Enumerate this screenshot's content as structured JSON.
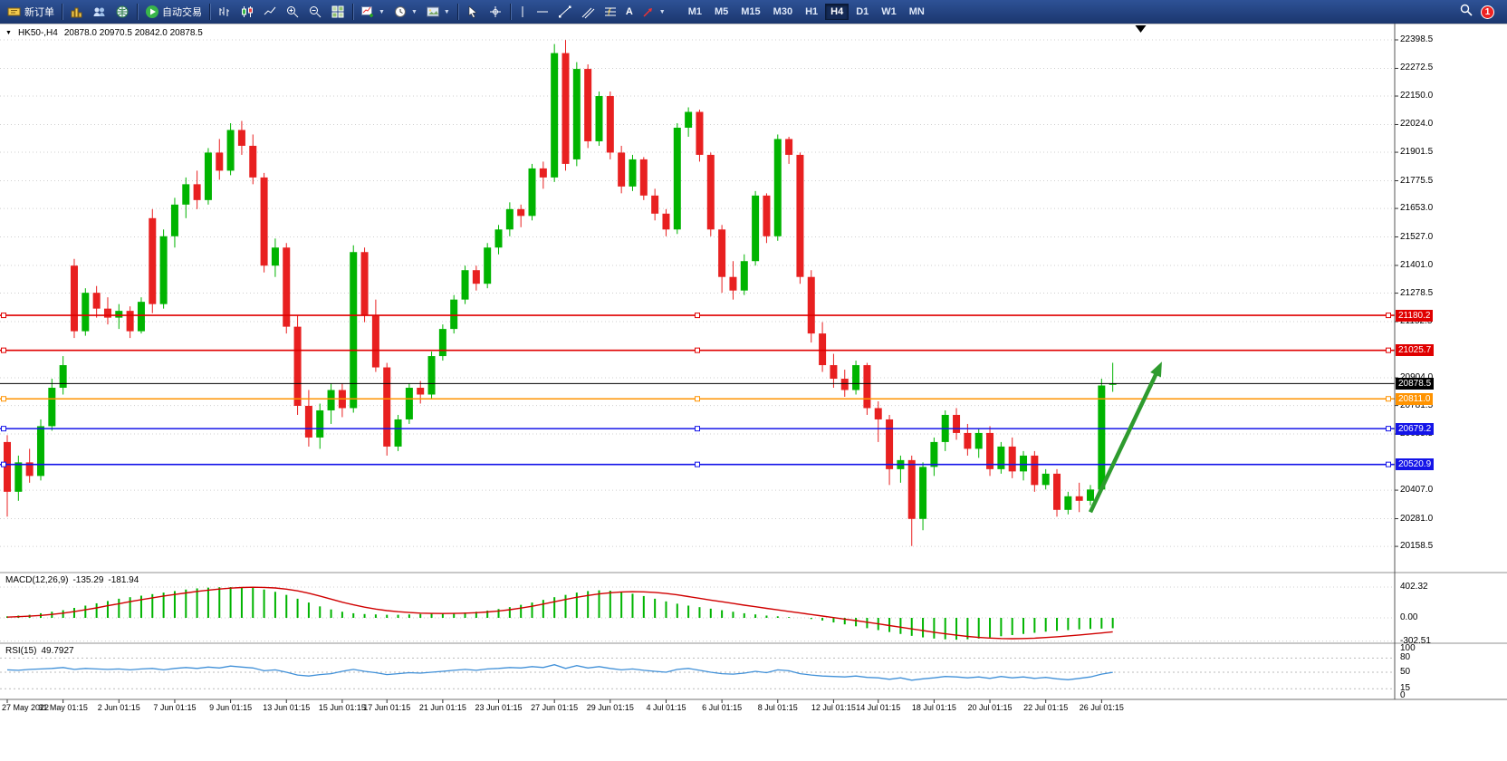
{
  "toolbar": {
    "new_order": "新订单",
    "auto_trading": "自动交易",
    "timeframes": [
      "M1",
      "M5",
      "M15",
      "M30",
      "H1",
      "H4",
      "D1",
      "W1",
      "MN"
    ],
    "active_timeframe": "H4",
    "notification_count": "1"
  },
  "chart": {
    "symbol": "HK50-,H4",
    "ohlc": "20878.0 20970.5 20842.0 20878.5",
    "price_axis_labels": [
      "22398.5",
      "22272.5",
      "22150.0",
      "22024.0",
      "21901.5",
      "21775.5",
      "21653.0",
      "21527.0",
      "21401.0",
      "21278.5",
      "21152.5",
      "20904.0",
      "20781.5",
      "20655.5",
      "20407.0",
      "20281.0",
      "20158.5"
    ],
    "level_lines": [
      {
        "price": 21180.2,
        "label": "21180.2",
        "color": "#e00000",
        "type": "resistance"
      },
      {
        "price": 21025.7,
        "label": "21025.7",
        "color": "#e00000",
        "type": "resistance"
      },
      {
        "price": 20878.5,
        "label": "20878.5",
        "color": "#000000",
        "type": "current-price"
      },
      {
        "price": 20811.0,
        "label": "20811.0",
        "color": "#ff9300",
        "type": "level"
      },
      {
        "price": 20679.2,
        "label": "20679.2",
        "color": "#1414e8",
        "type": "support"
      },
      {
        "price": 20520.9,
        "label": "20520.9",
        "color": "#1414e8",
        "type": "support"
      }
    ],
    "colors": {
      "bull": "#00b400",
      "bear": "#e82020",
      "macd_hist": "#00b400",
      "macd_signal": "#d00000",
      "rsi_line": "#4090d8"
    }
  },
  "chart_data": {
    "type": "candlestick",
    "symbol": "HK50-",
    "timeframe": "H4",
    "shift_marker_index": 101.5,
    "candles": [
      [
        20620,
        20650,
        20290,
        20400
      ],
      [
        20400,
        20560,
        20360,
        20530
      ],
      [
        20530,
        20590,
        20440,
        20470
      ],
      [
        20470,
        20720,
        20450,
        20690
      ],
      [
        20690,
        20900,
        20670,
        20860
      ],
      [
        20860,
        21000,
        20830,
        20960
      ],
      [
        21400,
        21430,
        21080,
        21110
      ],
      [
        21110,
        21300,
        21090,
        21280
      ],
      [
        21280,
        21310,
        21170,
        21210
      ],
      [
        21210,
        21260,
        21140,
        21170
      ],
      [
        21170,
        21230,
        21120,
        21200
      ],
      [
        21200,
        21220,
        21080,
        21110
      ],
      [
        21110,
        21260,
        21100,
        21240
      ],
      [
        21610,
        21650,
        21190,
        21230
      ],
      [
        21230,
        21560,
        21210,
        21530
      ],
      [
        21530,
        21700,
        21480,
        21670
      ],
      [
        21670,
        21790,
        21610,
        21760
      ],
      [
        21760,
        21820,
        21650,
        21690
      ],
      [
        21690,
        21920,
        21670,
        21900
      ],
      [
        21900,
        21960,
        21780,
        21820
      ],
      [
        21820,
        22030,
        21800,
        22000
      ],
      [
        22000,
        22040,
        21890,
        21930
      ],
      [
        21930,
        21980,
        21760,
        21790
      ],
      [
        21790,
        21810,
        21370,
        21400
      ],
      [
        21400,
        21520,
        21350,
        21480
      ],
      [
        21480,
        21500,
        21100,
        21130
      ],
      [
        21130,
        21180,
        20740,
        20780
      ],
      [
        20780,
        20850,
        20600,
        20640
      ],
      [
        20640,
        20790,
        20590,
        20760
      ],
      [
        20760,
        20880,
        20700,
        20850
      ],
      [
        20850,
        20880,
        20730,
        20770
      ],
      [
        20770,
        21490,
        20750,
        21460
      ],
      [
        21460,
        21480,
        21150,
        21180
      ],
      [
        21180,
        21250,
        20930,
        20950
      ],
      [
        20950,
        20970,
        20560,
        20600
      ],
      [
        20600,
        20740,
        20580,
        20720
      ],
      [
        20720,
        20880,
        20700,
        20860
      ],
      [
        20860,
        20890,
        20790,
        20830
      ],
      [
        20830,
        21020,
        20810,
        21000
      ],
      [
        21000,
        21140,
        20980,
        21120
      ],
      [
        21120,
        21270,
        21100,
        21250
      ],
      [
        21250,
        21400,
        21230,
        21380
      ],
      [
        21380,
        21400,
        21290,
        21320
      ],
      [
        21320,
        21500,
        21300,
        21480
      ],
      [
        21480,
        21580,
        21450,
        21560
      ],
      [
        21560,
        21680,
        21530,
        21650
      ],
      [
        21650,
        21670,
        21570,
        21620
      ],
      [
        21620,
        21850,
        21600,
        21830
      ],
      [
        21830,
        21860,
        21740,
        21790
      ],
      [
        21790,
        22380,
        21770,
        22340
      ],
      [
        22340,
        22398,
        21820,
        21850
      ],
      [
        21870,
        22300,
        21840,
        22270
      ],
      [
        22270,
        22290,
        21920,
        21950
      ],
      [
        21950,
        22170,
        21930,
        22150
      ],
      [
        22150,
        22170,
        21870,
        21900
      ],
      [
        21900,
        21930,
        21720,
        21750
      ],
      [
        21750,
        21890,
        21730,
        21870
      ],
      [
        21870,
        21880,
        21690,
        21710
      ],
      [
        21710,
        21740,
        21600,
        21630
      ],
      [
        21630,
        21650,
        21530,
        21560
      ],
      [
        21560,
        22030,
        21540,
        22010
      ],
      [
        22010,
        22100,
        21970,
        22080
      ],
      [
        22080,
        22090,
        21860,
        21890
      ],
      [
        21890,
        21900,
        21530,
        21560
      ],
      [
        21560,
        21580,
        21280,
        21350
      ],
      [
        21350,
        21420,
        21250,
        21290
      ],
      [
        21290,
        21450,
        21270,
        21420
      ],
      [
        21420,
        21730,
        21400,
        21710
      ],
      [
        21710,
        21720,
        21500,
        21530
      ],
      [
        21530,
        21980,
        21510,
        21960
      ],
      [
        21960,
        21970,
        21850,
        21890
      ],
      [
        21890,
        21900,
        21320,
        21350
      ],
      [
        21350,
        21380,
        21060,
        21100
      ],
      [
        21100,
        21150,
        20930,
        20960
      ],
      [
        20960,
        21010,
        20860,
        20900
      ],
      [
        20900,
        20940,
        20820,
        20850
      ],
      [
        20850,
        20980,
        20830,
        20960
      ],
      [
        20960,
        20970,
        20740,
        20770
      ],
      [
        20770,
        20800,
        20620,
        20720
      ],
      [
        20720,
        20740,
        20430,
        20500
      ],
      [
        20500,
        20560,
        20440,
        20540
      ],
      [
        20540,
        20560,
        20160,
        20280
      ],
      [
        20280,
        20530,
        20230,
        20510
      ],
      [
        20510,
        20640,
        20470,
        20620
      ],
      [
        20620,
        20760,
        20580,
        20740
      ],
      [
        20740,
        20770,
        20630,
        20660
      ],
      [
        20660,
        20700,
        20560,
        20590
      ],
      [
        20590,
        20680,
        20550,
        20660
      ],
      [
        20660,
        20690,
        20470,
        20500
      ],
      [
        20500,
        20620,
        20480,
        20600
      ],
      [
        20600,
        20640,
        20460,
        20490
      ],
      [
        20490,
        20580,
        20450,
        20560
      ],
      [
        20560,
        20580,
        20400,
        20430
      ],
      [
        20430,
        20500,
        20410,
        20480
      ],
      [
        20480,
        20500,
        20290,
        20320
      ],
      [
        20320,
        20400,
        20300,
        20380
      ],
      [
        20380,
        20440,
        20310,
        20360
      ],
      [
        20360,
        20430,
        20340,
        20410
      ],
      [
        20410,
        20900,
        20400,
        20870
      ],
      [
        20878,
        20970.5,
        20842,
        20878.5
      ]
    ],
    "x_labels": [
      {
        "label": "27 May 2022",
        "index": 0
      },
      {
        "label": "31 May 01:15",
        "index": 5
      },
      {
        "label": "2 Jun 01:15",
        "index": 10
      },
      {
        "label": "7 Jun 01:15",
        "index": 15
      },
      {
        "label": "9 Jun 01:15",
        "index": 20
      },
      {
        "label": "13 Jun 01:15",
        "index": 25
      },
      {
        "label": "15 Jun 01:15",
        "index": 30
      },
      {
        "label": "17 Jun 01:15",
        "index": 34
      },
      {
        "label": "21 Jun 01:15",
        "index": 39
      },
      {
        "label": "23 Jun 01:15",
        "index": 44
      },
      {
        "label": "27 Jun 01:15",
        "index": 49
      },
      {
        "label": "29 Jun 01:15",
        "index": 54
      },
      {
        "label": "4 Jul 01:15",
        "index": 59
      },
      {
        "label": "6 Jul 01:15",
        "index": 64
      },
      {
        "label": "8 Jul 01:15",
        "index": 69
      },
      {
        "label": "12 Jul 01:15",
        "index": 74
      },
      {
        "label": "14 Jul 01:15",
        "index": 78
      },
      {
        "label": "18 Jul 01:15",
        "index": 83
      },
      {
        "label": "20 Jul 01:15",
        "index": 88
      },
      {
        "label": "22 Jul 01:15",
        "index": 93
      },
      {
        "label": "26 Jul 01:15",
        "index": 98
      }
    ],
    "macd": {
      "label": "MACD(12,26,9)",
      "main_str": "-135.29",
      "signal_str": "-181.94",
      "axis": [
        "402.32",
        "0.00",
        "-302.51"
      ],
      "histogram": [
        20,
        30,
        40,
        60,
        80,
        100,
        130,
        160,
        190,
        220,
        250,
        270,
        290,
        310,
        330,
        350,
        370,
        385,
        395,
        400,
        402,
        400,
        390,
        370,
        340,
        300,
        250,
        200,
        150,
        110,
        80,
        60,
        50,
        45,
        40,
        40,
        45,
        50,
        55,
        60,
        65,
        70,
        80,
        95,
        115,
        140,
        170,
        200,
        235,
        270,
        300,
        330,
        350,
        360,
        355,
        340,
        315,
        285,
        250,
        215,
        185,
        160,
        140,
        120,
        100,
        80,
        60,
        45,
        30,
        20,
        10,
        0,
        -15,
        -35,
        -60,
        -85,
        -110,
        -135,
        -160,
        -185,
        -210,
        -235,
        -255,
        -270,
        -280,
        -285,
        -280,
        -270,
        -255,
        -240,
        -225,
        -210,
        -195,
        -180,
        -170,
        -160,
        -150,
        -145,
        -140,
        -135.29
      ],
      "signal": [
        10,
        15,
        22,
        32,
        45,
        62,
        82,
        105,
        130,
        158,
        185,
        212,
        238,
        262,
        285,
        305,
        325,
        345,
        362,
        376,
        388,
        396,
        400,
        398,
        390,
        375,
        352,
        322,
        285,
        245,
        205,
        170,
        140,
        115,
        95,
        80,
        70,
        62,
        58,
        57,
        58,
        62,
        68,
        77,
        90,
        107,
        128,
        152,
        180,
        210,
        240,
        268,
        292,
        312,
        328,
        338,
        342,
        340,
        332,
        318,
        300,
        278,
        255,
        232,
        210,
        188,
        166,
        145,
        124,
        104,
        84,
        64,
        44,
        24,
        4,
        -16,
        -36,
        -57,
        -78,
        -100,
        -122,
        -144,
        -166,
        -188,
        -208,
        -226,
        -242,
        -255,
        -264,
        -270,
        -272,
        -270,
        -265,
        -257,
        -247,
        -236,
        -224,
        -211,
        -198,
        -181.94
      ]
    },
    "rsi": {
      "label": "RSI(15)",
      "value_str": "49.7927",
      "axis": [
        "100",
        "80",
        "50",
        "15",
        "0"
      ],
      "levels": [
        80,
        50,
        15
      ],
      "values": [
        55,
        54,
        56,
        57,
        58,
        60,
        56,
        58,
        57,
        56,
        57,
        55,
        57,
        58,
        55,
        58,
        60,
        58,
        61,
        59,
        63,
        61,
        59,
        53,
        55,
        50,
        44,
        42,
        45,
        47,
        52,
        56,
        52,
        49,
        45,
        47,
        49,
        48,
        50,
        52,
        54,
        56,
        54,
        57,
        58,
        60,
        59,
        62,
        60,
        66,
        58,
        64,
        59,
        62,
        58,
        55,
        57,
        54,
        52,
        50,
        56,
        58,
        54,
        50,
        47,
        46,
        48,
        52,
        49,
        55,
        53,
        47,
        44,
        42,
        41,
        40,
        42,
        39,
        38,
        35,
        38,
        33,
        36,
        38,
        41,
        40,
        38,
        40,
        37,
        41,
        38,
        40,
        37,
        39,
        36,
        34,
        37,
        40,
        46,
        49.79
      ]
    },
    "annotations": [
      {
        "type": "arrow",
        "i1": 97,
        "p1": 20310,
        "i2": 103.4,
        "p2": 20975,
        "color": "#2e9b2e"
      }
    ]
  }
}
